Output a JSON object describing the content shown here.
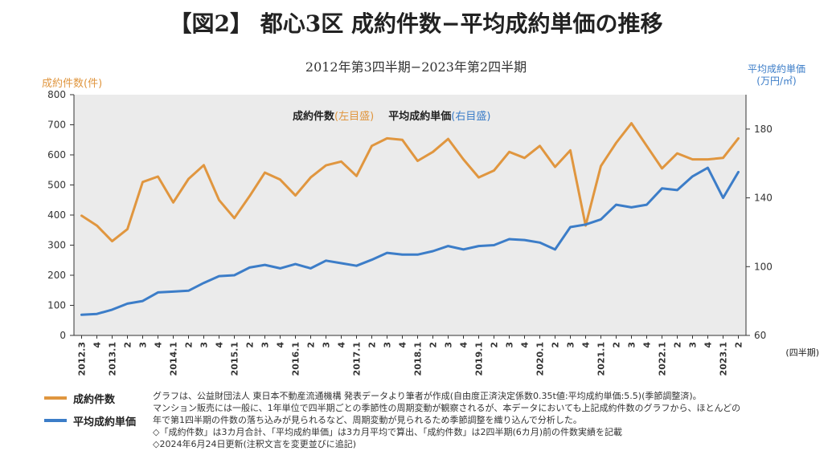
{
  "title": "【図2】 都心3区 成約件数−平均成約単価の推移",
  "subtitle": "2012年第3四半期−2023年第2四半期",
  "y_left_label": "成約件数(件)",
  "y_right_label_line1": "平均成約単価",
  "y_right_label_line2": "(万円/㎡)",
  "x_unit_label": "(四半期)",
  "legend_inline": {
    "series1": "成約件数",
    "series1_note": "(左目盛)",
    "series2": "平均成約単価",
    "series2_note": "(右目盛)"
  },
  "legend": {
    "item1": "成約件数",
    "item2": "平均成約単価"
  },
  "notes": [
    "グラフは、公益財団法人 東日本不動産流通機構 発表データより筆者が作成(自由度正済決定係数0.35t値:平均成約単価:5.5)(季節調整済)。",
    "マンション販売には一般に、1年単位で四半期ごとの季節性の周期変動が観察されるが、本データにおいても上記成約件数のグラフから、ほとんどの",
    "年で第1四半期の件数の落ち込みが見られるなど、周期変動が見られるため季節調整を織り込んで分析した。",
    "◇「成約件数」は3カ月合計、「平均成約単価」は3カ月平均で算出、「成約件数」は2四半期(6カ月)前の件数実績を記載",
    "◇2024年6月24日更新(注釈文言を変更並びに追記)"
  ],
  "colors": {
    "series1": "#E0963F",
    "series2": "#3C7DC8",
    "plot_bg": "#EBEBEB"
  },
  "chart_data": {
    "type": "line",
    "x": [
      "2012.3",
      "4",
      "2013.1",
      "2",
      "3",
      "4",
      "2014.1",
      "2",
      "3",
      "4",
      "2015.1",
      "2",
      "3",
      "4",
      "2016.1",
      "2",
      "3",
      "4",
      "2017.1",
      "2",
      "3",
      "4",
      "2018.1",
      "2",
      "3",
      "4",
      "2019.1",
      "2",
      "3",
      "4",
      "2020.1",
      "2",
      "3",
      "4",
      "2021.1",
      "2",
      "3",
      "4",
      "2022.1",
      "2",
      "3",
      "4",
      "2023.1",
      "2"
    ],
    "y_left_ticks": [
      "0",
      "100",
      "200",
      "300",
      "400",
      "500",
      "600",
      "700",
      "800"
    ],
    "y_left_range": [
      0,
      800
    ],
    "y_right_ticks": [
      "60",
      "100",
      "140",
      "180"
    ],
    "y_right_range": [
      60,
      200
    ],
    "grid": false,
    "series": [
      {
        "name": "成約件数",
        "axis": "left",
        "values": [
          398,
          365,
          313,
          353,
          510,
          528,
          442,
          520,
          566,
          450,
          390,
          463,
          541,
          518,
          465,
          525,
          565,
          578,
          530,
          630,
          655,
          650,
          580,
          610,
          653,
          585,
          525,
          548,
          610,
          590,
          630,
          560,
          615,
          365,
          563,
          640,
          705,
          630,
          555,
          605,
          585,
          585,
          590,
          655
        ]
      },
      {
        "name": "平均成約単価",
        "axis": "right",
        "values": [
          72,
          72.5,
          75,
          78.5,
          80,
          85,
          85.5,
          86,
          90.5,
          94.5,
          95,
          99.5,
          101,
          99,
          101.5,
          99,
          103.5,
          102,
          100.5,
          104,
          108,
          107,
          107,
          109,
          112,
          110,
          112,
          112.5,
          116,
          115.5,
          114,
          110,
          123,
          124.5,
          127.5,
          136,
          134.5,
          136,
          145.5,
          144.5,
          152.5,
          157.5,
          140,
          155
        ]
      }
    ]
  }
}
